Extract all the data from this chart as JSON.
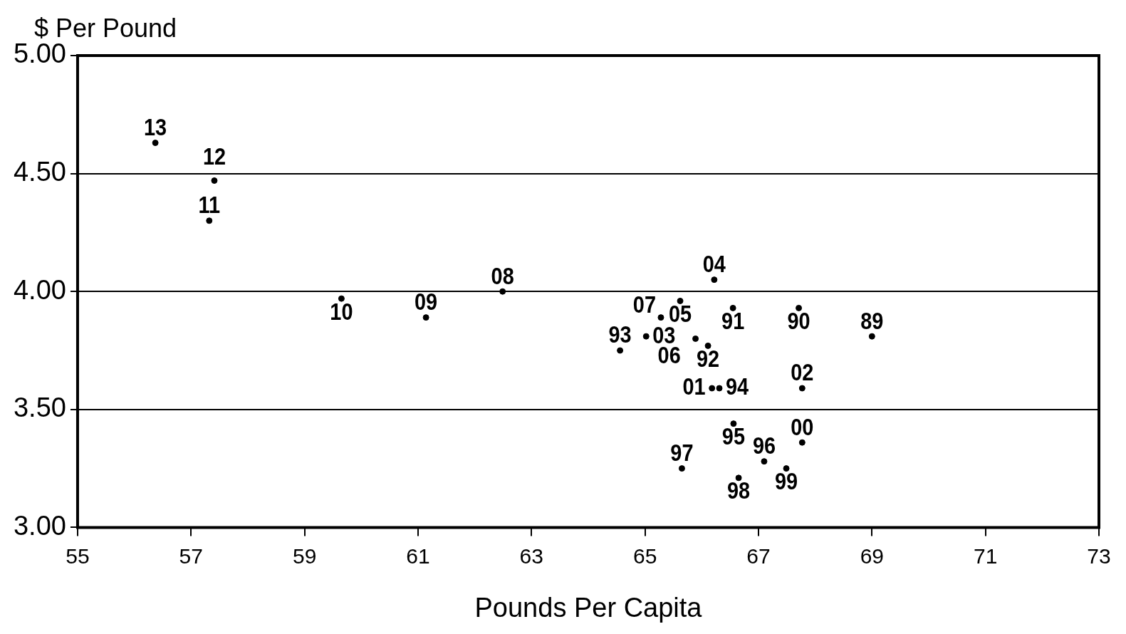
{
  "chart_data": {
    "type": "scatter",
    "xlabel": "Pounds Per Capita",
    "ylabel": "$ Per Pound",
    "x": [
      69.0,
      67.71,
      66.55,
      66.11,
      64.56,
      66.31,
      66.56,
      67.1,
      65.65,
      66.65,
      67.49,
      67.77,
      66.18,
      67.77,
      65.02,
      66.22,
      65.62,
      65.89,
      65.28,
      62.49,
      61.14,
      59.65,
      57.32,
      57.41,
      56.37
    ],
    "values": [
      3.81,
      3.93,
      3.93,
      3.77,
      3.75,
      3.59,
      3.44,
      3.28,
      3.25,
      3.21,
      3.25,
      3.36,
      3.59,
      3.59,
      3.81,
      4.05,
      3.96,
      3.8,
      3.89,
      4.0,
      3.89,
      3.97,
      4.3,
      4.47,
      4.63
    ],
    "annotations": [
      {
        "text": "89",
        "x": 69.0,
        "y": 3.81
      },
      {
        "text": "90",
        "x": 67.71,
        "y": 3.93
      },
      {
        "text": "91",
        "x": 66.55,
        "y": 3.93
      },
      {
        "text": "92",
        "x": 66.11,
        "y": 3.77
      },
      {
        "text": "93",
        "x": 64.56,
        "y": 3.75
      },
      {
        "text": "94",
        "x": 66.31,
        "y": 3.59
      },
      {
        "text": "95",
        "x": 66.56,
        "y": 3.44
      },
      {
        "text": "96",
        "x": 67.1,
        "y": 3.28
      },
      {
        "text": "97",
        "x": 65.65,
        "y": 3.25
      },
      {
        "text": "98",
        "x": 66.65,
        "y": 3.21
      },
      {
        "text": "99",
        "x": 67.49,
        "y": 3.25
      },
      {
        "text": "00",
        "x": 67.77,
        "y": 3.36
      },
      {
        "text": "01",
        "x": 66.18,
        "y": 3.59
      },
      {
        "text": "02",
        "x": 67.77,
        "y": 3.59
      },
      {
        "text": "03",
        "x": 65.02,
        "y": 3.81
      },
      {
        "text": "04",
        "x": 66.22,
        "y": 4.05
      },
      {
        "text": "05",
        "x": 65.62,
        "y": 3.96
      },
      {
        "text": "06",
        "x": 65.89,
        "y": 3.8
      },
      {
        "text": "07",
        "x": 65.28,
        "y": 3.89
      },
      {
        "text": "08",
        "x": 62.49,
        "y": 4.0
      },
      {
        "text": "09",
        "x": 61.14,
        "y": 3.89
      },
      {
        "text": "10",
        "x": 59.65,
        "y": 3.97
      },
      {
        "text": "11",
        "x": 57.32,
        "y": 4.3
      },
      {
        "text": "12",
        "x": 57.41,
        "y": 4.47
      },
      {
        "text": "13",
        "x": 56.37,
        "y": 4.63
      }
    ],
    "color": "#000000",
    "marker": "circle",
    "grid": "y",
    "xlim": [
      55,
      73
    ],
    "xticks": [
      55,
      57,
      59,
      61,
      63,
      65,
      67,
      69,
      71,
      73
    ],
    "ylim": [
      3,
      5
    ],
    "yticks": [
      {
        "value": 3,
        "label": "3.00"
      },
      {
        "value": 3.5,
        "label": "3.50"
      },
      {
        "value": 4,
        "label": "4.00"
      },
      {
        "value": 4.5,
        "label": "4.50"
      },
      {
        "value": 5,
        "label": "5.00"
      }
    ]
  }
}
